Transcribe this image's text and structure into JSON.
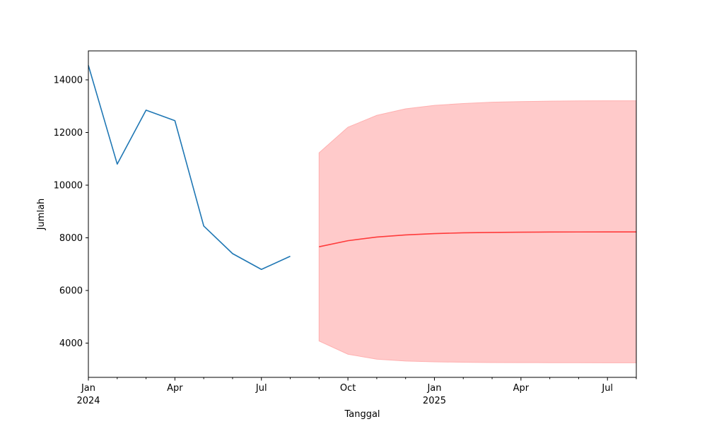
{
  "chart_data": {
    "type": "line",
    "title": "",
    "xlabel": "Tanggal",
    "ylabel": "Jumlah",
    "xlim": [
      "2024-01",
      "2025-08"
    ],
    "ylim": [
      2700,
      15100
    ],
    "grid": false,
    "colors": {
      "actual": "#1f77b4",
      "forecast": "#ff3b3b",
      "band": "#ffcaca",
      "band_edge": "#ffb0b0"
    },
    "series": [
      {
        "x": [
          "2024-01",
          "2024-02",
          "2024-03",
          "2024-04",
          "2024-05",
          "2024-06",
          "2024-07",
          "2024-08"
        ],
        "y": [
          14550,
          10800,
          12850,
          12450,
          8450,
          7400,
          6800,
          7300
        ]
      },
      {
        "x": [
          "2024-09",
          "2024-10",
          "2024-11",
          "2024-12",
          "2025-01",
          "2025-02",
          "2025-03",
          "2025-04",
          "2025-05",
          "2025-06",
          "2025-07",
          "2025-08"
        ],
        "y": [
          7660,
          7890,
          8030,
          8110,
          8160,
          8190,
          8205,
          8215,
          8220,
          8222,
          8224,
          8225
        ]
      }
    ],
    "interval": {
      "x": [
        "2024-09",
        "2024-10",
        "2024-11",
        "2024-12",
        "2025-01",
        "2025-02",
        "2025-03",
        "2025-04",
        "2025-05",
        "2025-06",
        "2025-07",
        "2025-08"
      ],
      "lower": [
        4080,
        3580,
        3390,
        3320,
        3290,
        3275,
        3265,
        3260,
        3258,
        3256,
        3255,
        3255
      ],
      "upper": [
        11230,
        12200,
        12650,
        12900,
        13030,
        13100,
        13150,
        13175,
        13190,
        13200,
        13205,
        13205
      ]
    },
    "y_ticks": [
      4000,
      6000,
      8000,
      10000,
      12000,
      14000
    ],
    "y_tick_labels": [
      "4000",
      "6000",
      "8000",
      "10000",
      "12000",
      "14000"
    ],
    "x_major_ticks": [
      {
        "x": "2024-01",
        "label": "Jan",
        "sublabel": "2024"
      },
      {
        "x": "2024-04",
        "label": "Apr",
        "sublabel": ""
      },
      {
        "x": "2024-07",
        "label": "Jul",
        "sublabel": ""
      },
      {
        "x": "2024-10",
        "label": "Oct",
        "sublabel": ""
      },
      {
        "x": "2025-01",
        "label": "Jan",
        "sublabel": "2025"
      },
      {
        "x": "2025-04",
        "label": "Apr",
        "sublabel": ""
      },
      {
        "x": "2025-07",
        "label": "Jul",
        "sublabel": ""
      }
    ],
    "x_minor_ticks": [
      "2024-02",
      "2024-03",
      "2024-05",
      "2024-06",
      "2024-08",
      "2024-09",
      "2024-11",
      "2024-12",
      "2025-02",
      "2025-03",
      "2025-05",
      "2025-06",
      "2025-08"
    ]
  }
}
